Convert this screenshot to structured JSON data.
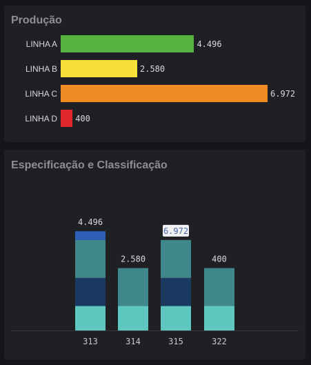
{
  "panels": {
    "production": {
      "title": "Produção"
    },
    "specification": {
      "title": "Especificação e Classificação"
    }
  },
  "chart_data": [
    {
      "type": "bar",
      "orientation": "horizontal",
      "title": "Produção",
      "categories": [
        "LINHA A",
        "LINHA B",
        "LINHA C",
        "LINHA D"
      ],
      "values": [
        4496,
        2580,
        6972,
        400
      ],
      "value_labels": [
        "4.496",
        "2.580",
        "6.972",
        "400"
      ],
      "colors": [
        "#56b342",
        "#f8e03a",
        "#ef8a25",
        "#e0282b"
      ],
      "xlim": [
        0,
        6972
      ]
    },
    {
      "type": "bar",
      "stacked": true,
      "title": "Especificação e Classificação",
      "categories": [
        "313",
        "314",
        "315",
        "322"
      ],
      "totals": [
        4496,
        2580,
        6972,
        400
      ],
      "total_labels": [
        "4.496",
        "2.580",
        "6.972",
        "400"
      ],
      "segment_colors": [
        "#5ec8c0",
        "#1b3a62",
        "#3f878a",
        "#2e5fb8"
      ],
      "segments": [
        [
          1124,
          1124,
          1124,
          1124
        ],
        [
          1290,
          0,
          1290,
          0
        ],
        [
          1743,
          1743,
          1743,
          1743
        ],
        [
          400,
          0,
          0,
          0
        ]
      ],
      "highlighted_total_index": 2,
      "ylim": [
        0,
        6972
      ],
      "grid": false,
      "legend": "none"
    }
  ]
}
